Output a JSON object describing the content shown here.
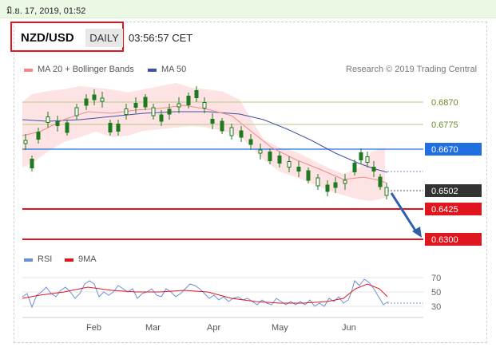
{
  "status_bar": {
    "timestamp": "มิ.ย. 17, 2019, 01:52"
  },
  "header": {
    "symbol": "NZD/USD",
    "period": "DAILY",
    "time": "03:56:57 CET"
  },
  "legend": {
    "ma20_label": "MA 20 + Bollinger Bands",
    "ma50_label": "MA 50",
    "credit": "Research © 2019 Trading Central",
    "rsi_label": "RSI",
    "rsi_ma_label": "9MA"
  },
  "colors": {
    "ma20": "#f28a8a",
    "ma50": "#3f51a3",
    "resistance_blue": "#1f6fe0",
    "support_red": "#e0161f",
    "olive_level": "#b6c98a",
    "candle": "#1e7a1e"
  },
  "price_levels": [
    {
      "value": "0.6870",
      "style": "olive-label"
    },
    {
      "value": "0.6775",
      "style": "olive-label"
    },
    {
      "value": "0.6670",
      "style": "blue-tag"
    },
    {
      "value": "0.6502",
      "style": "current-tag"
    },
    {
      "value": "0.6425",
      "style": "red-tag"
    },
    {
      "value": "0.6300",
      "style": "red-tag"
    }
  ],
  "rsi_ticks": [
    "70",
    "50",
    "30"
  ],
  "months": [
    "Feb",
    "Mar",
    "Apr",
    "May",
    "Jun"
  ],
  "chart_data": {
    "type": "candlestick",
    "title": "NZD/USD",
    "period": "DAILY",
    "x_ticks": [
      "Feb",
      "Mar",
      "Apr",
      "May",
      "Jun"
    ],
    "ylim": [
      0.627,
      0.693
    ],
    "series": [
      {
        "name": "NZD/USD",
        "close_approx": [
          0.672,
          0.678,
          0.682,
          0.686,
          0.68,
          0.683,
          0.678,
          0.681,
          0.687,
          0.68,
          0.676,
          0.665,
          0.662,
          0.656,
          0.654,
          0.651,
          0.66,
          0.666,
          0.658,
          0.652
        ]
      },
      {
        "name": "MA 20 + Bollinger Bands"
      },
      {
        "name": "MA 50"
      },
      {
        "name": "RSI",
        "ylim": [
          20,
          80
        ]
      },
      {
        "name": "9MA"
      }
    ],
    "levels": [
      0.687,
      0.6775,
      0.667,
      0.6502,
      0.6425,
      0.63
    ]
  }
}
